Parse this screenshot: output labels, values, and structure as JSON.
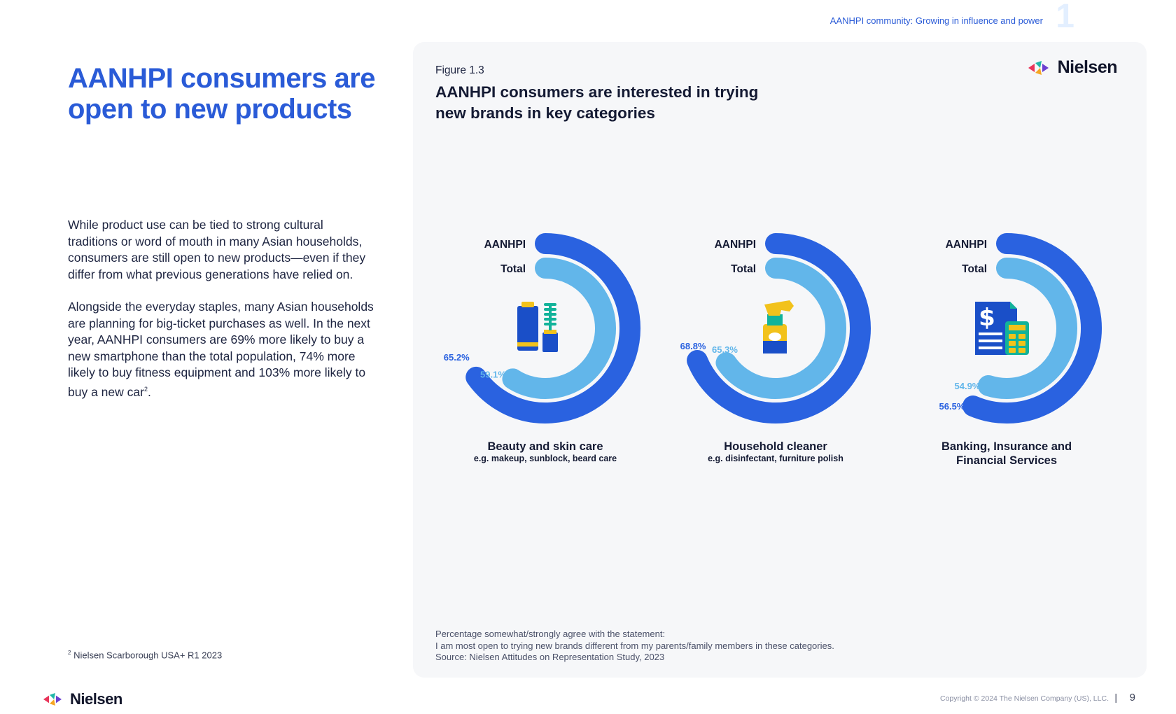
{
  "header": {
    "section": "AANHPI community: Growing in influence and power",
    "section_number": "1"
  },
  "left": {
    "title": "AANHPI consumers are open to new products",
    "paragraph1": "While product use can be tied to strong cultural traditions or word of mouth in many Asian households, consumers are still open to new products—even if they differ from what previous generations have relied on.",
    "paragraph2": "Alongside the everyday staples, many Asian households are planning for big-ticket purchases as well. In the next year, AANHPI consumers are 69% more likely to buy a new smartphone than the total population, 74% more likely to buy fitness equipment and 103% more likely to buy a new car",
    "paragraph2_sup": "2",
    "paragraph2_end": ".",
    "footnote_sup": "2",
    "footnote": "Nielsen Scarborough USA+ R1 2023"
  },
  "panel": {
    "figure_label": "Figure 1.3",
    "figure_title": "AANHPI consumers are interested in trying new brands in key categories",
    "logo_text": "Nielsen",
    "note1": "Percentage somewhat/strongly agree with the statement:",
    "note2": "I am most open to trying new brands different from my parents/family members in these categories.",
    "note3": "Source: Nielsen Attitudes on Representation Study, 2023"
  },
  "colors": {
    "aanhpi": "#2a62e0",
    "total": "#62b6ea",
    "accent_blue": "#2a5bd7"
  },
  "chart_data": {
    "type": "radial-bar",
    "series_names": [
      "AANHPI",
      "Total"
    ],
    "unit": "%",
    "max": 100,
    "categories": [
      {
        "name": "Beauty and skin care",
        "subtitle": "e.g. makeup, sunblock, beard care",
        "icon": "cosmetics-icon",
        "aanhpi": 65.2,
        "total": 59.1,
        "aanhpi_label": "65.2%",
        "total_label": "59.1%"
      },
      {
        "name": "Household cleaner",
        "subtitle": "e.g. disinfectant, furniture polish",
        "icon": "spray-bottle-icon",
        "aanhpi": 68.8,
        "total": 65.3,
        "aanhpi_label": "68.8%",
        "total_label": "65.3%"
      },
      {
        "name": "Banking, Insurance and Financial Services",
        "subtitle": "",
        "icon": "financial-document-icon",
        "aanhpi": 56.5,
        "total": 54.9,
        "aanhpi_label": "56.5%",
        "total_label": "54.9%"
      }
    ]
  },
  "footer": {
    "logo_text": "Nielsen",
    "copyright": "Copyright © 2024 The Nielsen Company (US), LLC.",
    "separator": "|",
    "page_number": "9"
  }
}
